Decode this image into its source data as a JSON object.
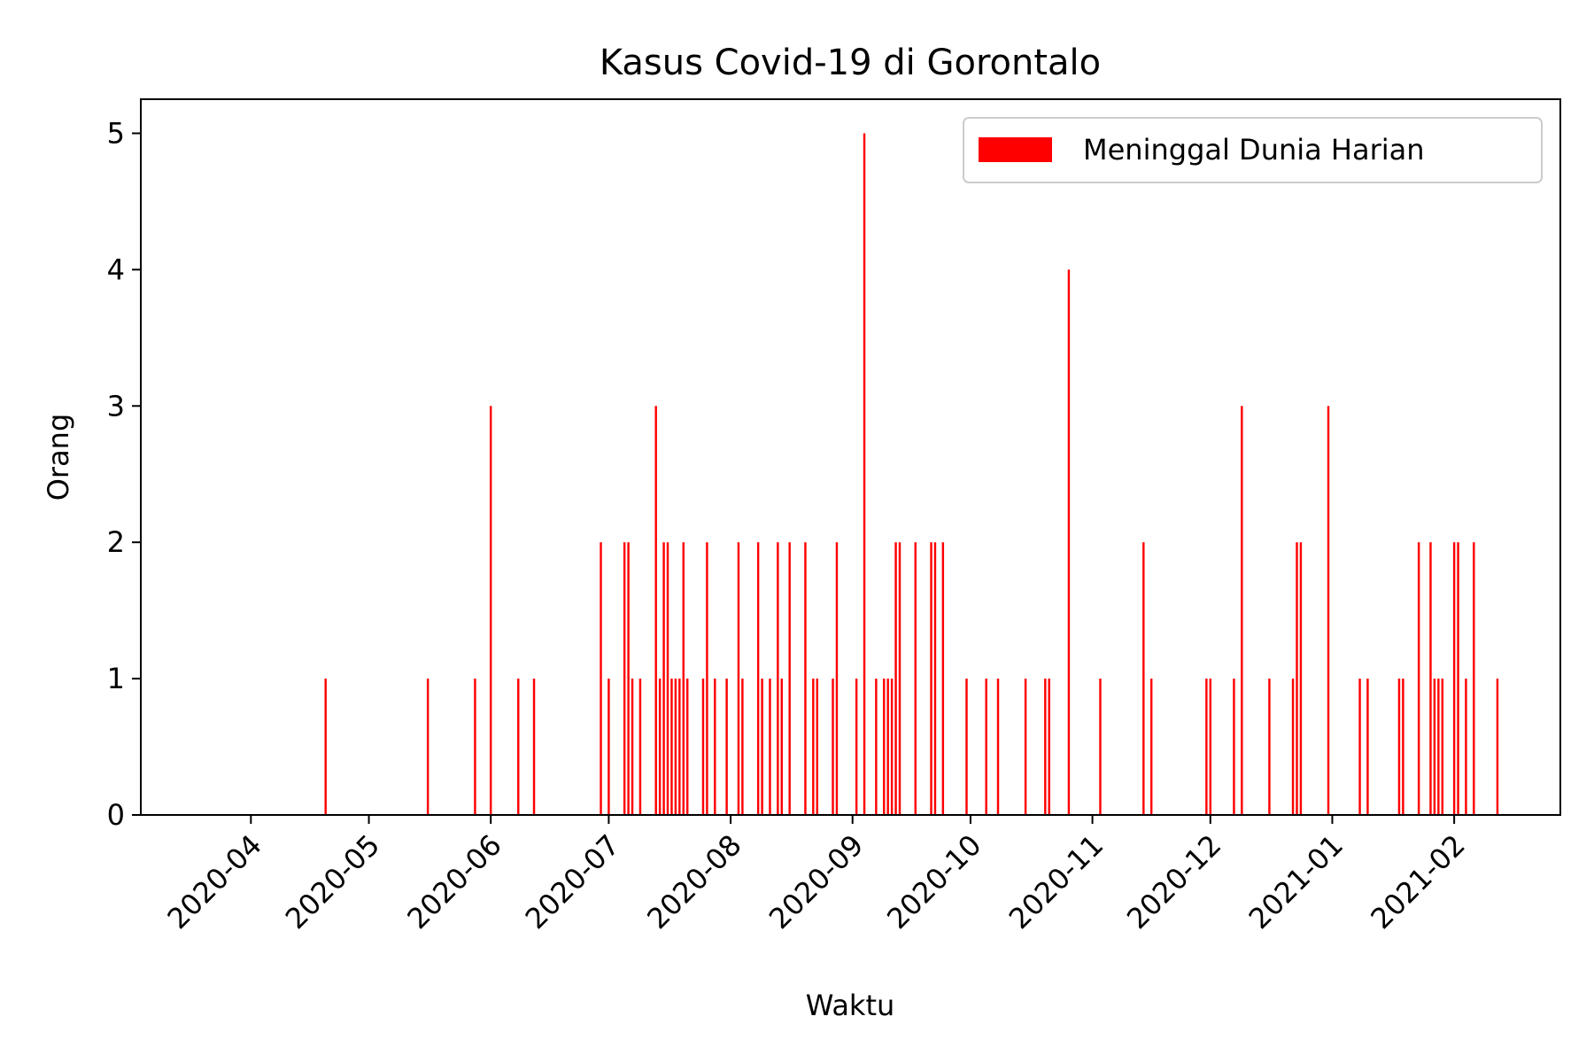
{
  "chart_data": {
    "type": "bar",
    "title": "Kasus Covid-19 di Gorontalo",
    "xlabel": "Waktu",
    "ylabel": "Orang",
    "ylim": [
      0,
      5.25
    ],
    "xlim": [
      "2020-03-04",
      "2021-02-28"
    ],
    "yticks": [
      0,
      1,
      2,
      3,
      4,
      5
    ],
    "xticks": [
      "2020-04-01",
      "2020-05-01",
      "2020-06-01",
      "2020-07-01",
      "2020-08-01",
      "2020-09-01",
      "2020-10-01",
      "2020-11-01",
      "2020-12-01",
      "2021-01-01",
      "2021-02-01"
    ],
    "xtick_labels": [
      "2020-04",
      "2020-05",
      "2020-06",
      "2020-07",
      "2020-08",
      "2020-09",
      "2020-10",
      "2020-11",
      "2020-12",
      "2021-01",
      "2021-02"
    ],
    "legend_position": "top-right",
    "series": [
      {
        "name": "Meninggal Dunia Harian",
        "color": "#ff0000",
        "points": [
          [
            "2020-04-20",
            1
          ],
          [
            "2020-05-16",
            1
          ],
          [
            "2020-05-28",
            1
          ],
          [
            "2020-06-01",
            3
          ],
          [
            "2020-06-08",
            1
          ],
          [
            "2020-06-12",
            1
          ],
          [
            "2020-06-29",
            2
          ],
          [
            "2020-07-01",
            1
          ],
          [
            "2020-07-05",
            2
          ],
          [
            "2020-07-06",
            2
          ],
          [
            "2020-07-07",
            1
          ],
          [
            "2020-07-09",
            1
          ],
          [
            "2020-07-13",
            3
          ],
          [
            "2020-07-14",
            1
          ],
          [
            "2020-07-15",
            2
          ],
          [
            "2020-07-16",
            2
          ],
          [
            "2020-07-17",
            1
          ],
          [
            "2020-07-18",
            1
          ],
          [
            "2020-07-19",
            1
          ],
          [
            "2020-07-20",
            2
          ],
          [
            "2020-07-21",
            1
          ],
          [
            "2020-07-25",
            1
          ],
          [
            "2020-07-26",
            2
          ],
          [
            "2020-07-28",
            1
          ],
          [
            "2020-07-31",
            1
          ],
          [
            "2020-08-03",
            2
          ],
          [
            "2020-08-04",
            1
          ],
          [
            "2020-08-08",
            2
          ],
          [
            "2020-08-09",
            1
          ],
          [
            "2020-08-11",
            1
          ],
          [
            "2020-08-13",
            2
          ],
          [
            "2020-08-14",
            1
          ],
          [
            "2020-08-16",
            2
          ],
          [
            "2020-08-20",
            2
          ],
          [
            "2020-08-22",
            1
          ],
          [
            "2020-08-23",
            1
          ],
          [
            "2020-08-27",
            1
          ],
          [
            "2020-08-28",
            2
          ],
          [
            "2020-09-02",
            1
          ],
          [
            "2020-09-04",
            5
          ],
          [
            "2020-09-07",
            1
          ],
          [
            "2020-09-09",
            1
          ],
          [
            "2020-09-10",
            1
          ],
          [
            "2020-09-11",
            1
          ],
          [
            "2020-09-12",
            2
          ],
          [
            "2020-09-13",
            2
          ],
          [
            "2020-09-17",
            2
          ],
          [
            "2020-09-21",
            2
          ],
          [
            "2020-09-22",
            2
          ],
          [
            "2020-09-24",
            2
          ],
          [
            "2020-09-30",
            1
          ],
          [
            "2020-10-05",
            1
          ],
          [
            "2020-10-08",
            1
          ],
          [
            "2020-10-15",
            1
          ],
          [
            "2020-10-20",
            1
          ],
          [
            "2020-10-21",
            1
          ],
          [
            "2020-10-26",
            4
          ],
          [
            "2020-11-03",
            1
          ],
          [
            "2020-11-14",
            2
          ],
          [
            "2020-11-16",
            1
          ],
          [
            "2020-11-30",
            1
          ],
          [
            "2020-12-01",
            1
          ],
          [
            "2020-12-07",
            1
          ],
          [
            "2020-12-09",
            3
          ],
          [
            "2020-12-16",
            1
          ],
          [
            "2020-12-22",
            1
          ],
          [
            "2020-12-23",
            2
          ],
          [
            "2020-12-24",
            2
          ],
          [
            "2020-12-31",
            3
          ],
          [
            "2021-01-08",
            1
          ],
          [
            "2021-01-10",
            1
          ],
          [
            "2021-01-18",
            1
          ],
          [
            "2021-01-19",
            1
          ],
          [
            "2021-01-23",
            2
          ],
          [
            "2021-01-26",
            2
          ],
          [
            "2021-01-27",
            1
          ],
          [
            "2021-01-28",
            1
          ],
          [
            "2021-01-29",
            1
          ],
          [
            "2021-02-01",
            2
          ],
          [
            "2021-02-02",
            2
          ],
          [
            "2021-02-04",
            1
          ],
          [
            "2021-02-06",
            2
          ],
          [
            "2021-02-12",
            1
          ]
        ]
      }
    ]
  }
}
